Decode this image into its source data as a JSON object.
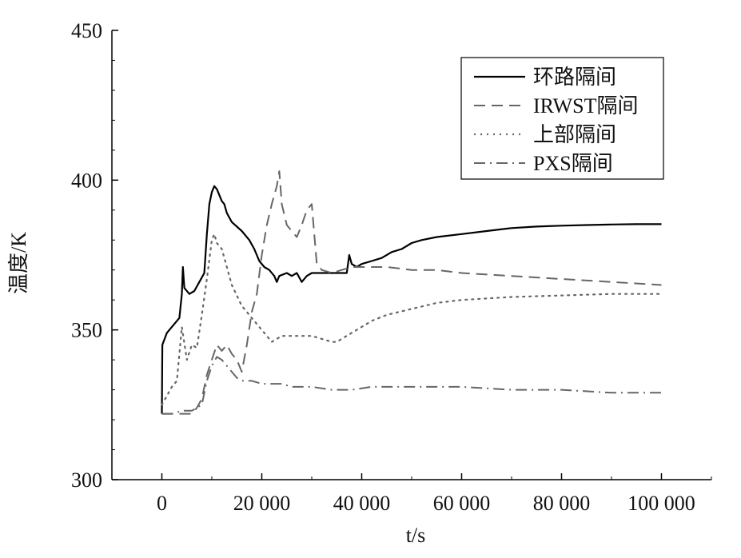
{
  "chart_data": {
    "type": "line",
    "xlabel": "t/s",
    "ylabel": "温度/K",
    "xlim": [
      -10000,
      110000
    ],
    "ylim": [
      300,
      450
    ],
    "x_ticks": [
      0,
      20000,
      40000,
      60000,
      80000,
      100000
    ],
    "x_tick_labels": [
      "0",
      "20 000",
      "40 000",
      "60 000",
      "80 000",
      "100 000"
    ],
    "y_ticks": [
      300,
      350,
      400,
      450
    ],
    "y_tick_labels": [
      "300",
      "350",
      "400",
      "450"
    ],
    "grid": false,
    "legend_position": "top-right",
    "series": [
      {
        "name": "环路隔间",
        "color": "#000000",
        "style": "solid",
        "points": [
          [
            0,
            322
          ],
          [
            100,
            345
          ],
          [
            1000,
            349
          ],
          [
            2000,
            351
          ],
          [
            3000,
            353
          ],
          [
            3500,
            354
          ],
          [
            4000,
            362
          ],
          [
            4200,
            371
          ],
          [
            4500,
            364
          ],
          [
            5500,
            362
          ],
          [
            6500,
            363
          ],
          [
            7500,
            366
          ],
          [
            8500,
            369
          ],
          [
            9000,
            382
          ],
          [
            9500,
            392
          ],
          [
            10000,
            396
          ],
          [
            10500,
            398
          ],
          [
            11000,
            397
          ],
          [
            11500,
            395
          ],
          [
            12000,
            393
          ],
          [
            12500,
            392
          ],
          [
            13000,
            389
          ],
          [
            14000,
            386
          ],
          [
            16000,
            383
          ],
          [
            17500,
            380
          ],
          [
            18500,
            377
          ],
          [
            19500,
            373
          ],
          [
            20500,
            371
          ],
          [
            21500,
            370
          ],
          [
            22500,
            368
          ],
          [
            23000,
            366
          ],
          [
            23500,
            368
          ],
          [
            25000,
            369
          ],
          [
            26000,
            368
          ],
          [
            27000,
            369
          ],
          [
            28000,
            366
          ],
          [
            29000,
            368
          ],
          [
            30000,
            369
          ],
          [
            32000,
            369
          ],
          [
            35000,
            369
          ],
          [
            37000,
            369
          ],
          [
            37500,
            375
          ],
          [
            38000,
            372
          ],
          [
            39000,
            371
          ],
          [
            40000,
            372
          ],
          [
            42000,
            373
          ],
          [
            44000,
            374
          ],
          [
            46000,
            376
          ],
          [
            48000,
            377
          ],
          [
            50000,
            379
          ],
          [
            52000,
            380
          ],
          [
            55000,
            381
          ],
          [
            60000,
            382
          ],
          [
            65000,
            383
          ],
          [
            70000,
            384
          ],
          [
            75000,
            384.5
          ],
          [
            80000,
            384.8
          ],
          [
            85000,
            385
          ],
          [
            90000,
            385.2
          ],
          [
            95000,
            385.3
          ],
          [
            100000,
            385.3
          ]
        ]
      },
      {
        "name": "IRWST隔间",
        "color": "#666666",
        "style": "dashed",
        "points": [
          [
            0,
            322
          ],
          [
            3000,
            322
          ],
          [
            6000,
            322
          ],
          [
            7000,
            324
          ],
          [
            8000,
            327
          ],
          [
            9000,
            335
          ],
          [
            10000,
            340
          ],
          [
            11000,
            345
          ],
          [
            12000,
            343
          ],
          [
            13000,
            345
          ],
          [
            14000,
            342
          ],
          [
            15000,
            340
          ],
          [
            16000,
            336
          ],
          [
            17000,
            345
          ],
          [
            18000,
            356
          ],
          [
            19000,
            362
          ],
          [
            20000,
            375
          ],
          [
            21000,
            385
          ],
          [
            22000,
            392
          ],
          [
            23000,
            398
          ],
          [
            23500,
            403
          ],
          [
            24000,
            392
          ],
          [
            25000,
            385
          ],
          [
            26000,
            383
          ],
          [
            27000,
            381
          ],
          [
            28000,
            385
          ],
          [
            29000,
            390
          ],
          [
            30000,
            392
          ],
          [
            31000,
            372
          ],
          [
            32000,
            370
          ],
          [
            34000,
            369
          ],
          [
            36000,
            370
          ],
          [
            38000,
            371
          ],
          [
            40000,
            371
          ],
          [
            45000,
            371
          ],
          [
            50000,
            370
          ],
          [
            55000,
            370
          ],
          [
            60000,
            369
          ],
          [
            70000,
            368
          ],
          [
            80000,
            367
          ],
          [
            90000,
            366
          ],
          [
            100000,
            365
          ]
        ]
      },
      {
        "name": "上部隔间",
        "color": "#666666",
        "style": "dotted",
        "points": [
          [
            0,
            325
          ],
          [
            1000,
            328
          ],
          [
            2000,
            331
          ],
          [
            3000,
            333
          ],
          [
            4000,
            351
          ],
          [
            5000,
            340
          ],
          [
            6000,
            345
          ],
          [
            7000,
            344
          ],
          [
            8000,
            355
          ],
          [
            9000,
            367
          ],
          [
            10000,
            380
          ],
          [
            10500,
            382
          ],
          [
            11000,
            379
          ],
          [
            12000,
            377
          ],
          [
            13000,
            371
          ],
          [
            14000,
            365
          ],
          [
            16000,
            358
          ],
          [
            18000,
            354
          ],
          [
            20000,
            350
          ],
          [
            22000,
            346
          ],
          [
            24000,
            348
          ],
          [
            26000,
            348
          ],
          [
            28000,
            348
          ],
          [
            30000,
            348
          ],
          [
            32000,
            347
          ],
          [
            34000,
            346
          ],
          [
            35000,
            346
          ],
          [
            36000,
            347
          ],
          [
            38000,
            349
          ],
          [
            40000,
            351
          ],
          [
            42000,
            353
          ],
          [
            45000,
            355
          ],
          [
            50000,
            357
          ],
          [
            55000,
            359
          ],
          [
            60000,
            360
          ],
          [
            70000,
            361
          ],
          [
            80000,
            361.5
          ],
          [
            90000,
            362
          ],
          [
            100000,
            362
          ]
        ]
      },
      {
        "name": "PXS隔间",
        "color": "#666666",
        "style": "dashdot",
        "points": [
          [
            0,
            322
          ],
          [
            2000,
            322
          ],
          [
            4000,
            323
          ],
          [
            6000,
            323
          ],
          [
            8000,
            325
          ],
          [
            9000,
            333
          ],
          [
            10000,
            338
          ],
          [
            11000,
            341
          ],
          [
            12000,
            340
          ],
          [
            13000,
            338
          ],
          [
            14000,
            336
          ],
          [
            15000,
            334
          ],
          [
            16000,
            333
          ],
          [
            18000,
            333
          ],
          [
            20000,
            332
          ],
          [
            22000,
            332
          ],
          [
            24000,
            332
          ],
          [
            26000,
            331
          ],
          [
            28000,
            331
          ],
          [
            30000,
            331
          ],
          [
            34000,
            330
          ],
          [
            38000,
            330
          ],
          [
            42000,
            331
          ],
          [
            46000,
            331
          ],
          [
            50000,
            331
          ],
          [
            60000,
            331
          ],
          [
            70000,
            330
          ],
          [
            80000,
            330
          ],
          [
            90000,
            329
          ],
          [
            100000,
            329
          ]
        ]
      }
    ]
  }
}
